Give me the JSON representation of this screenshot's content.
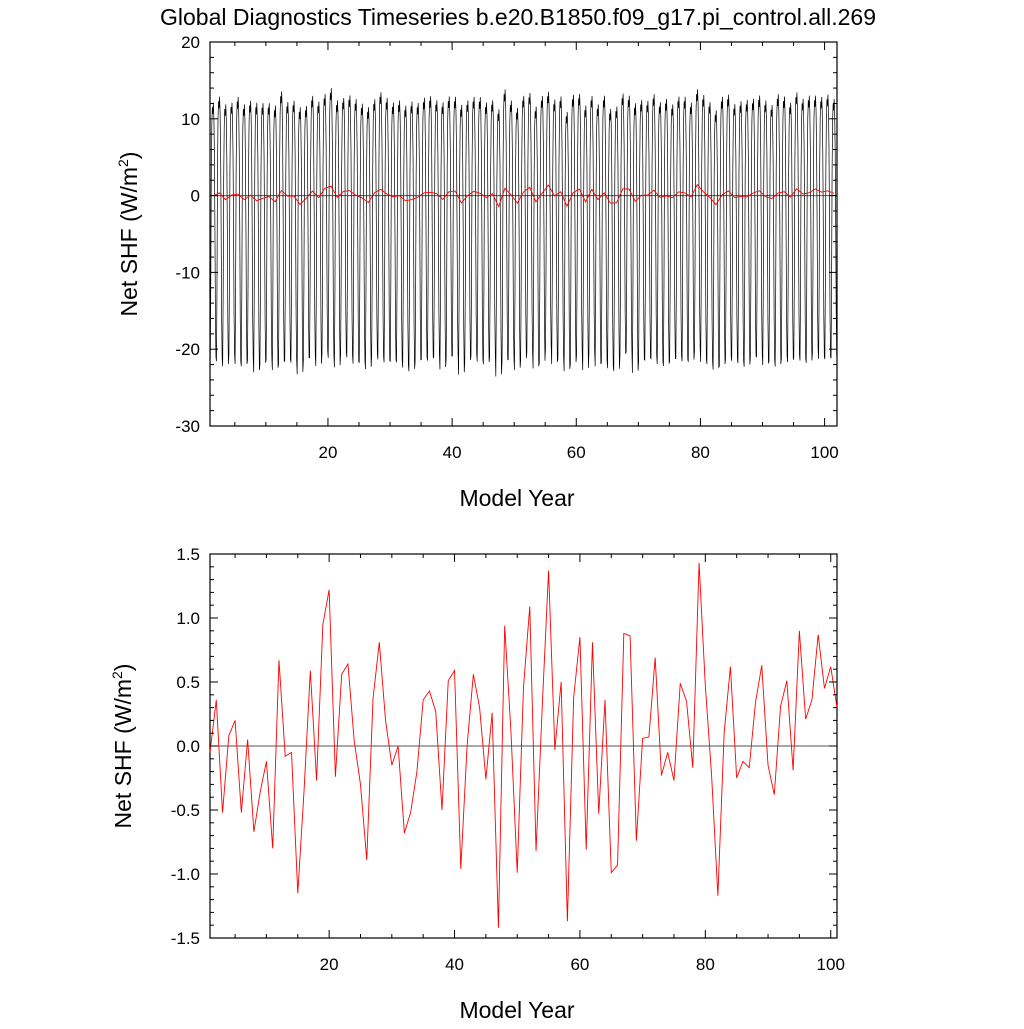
{
  "title": "Global Diagnostics Timeseries b.e20.B1850.f09_g17.pi_control.all.269",
  "chart_data": [
    {
      "type": "line",
      "xlabel": "Model Year",
      "ylabel": "Net SHF (W/m²)",
      "ylabel_main": "Net SHF (W/m",
      "ylabel_sup": "2",
      "ylabel_close": ")",
      "xlim": [
        1,
        102
      ],
      "ylim": [
        -30,
        20
      ],
      "xticks": [
        20,
        40,
        60,
        80,
        100
      ],
      "xtick_labels": [
        "20",
        "40",
        "60",
        "80",
        "100"
      ],
      "yticks": [
        20,
        10,
        0,
        -10,
        -20,
        -30
      ],
      "ytick_labels": [
        "20",
        "10",
        "0",
        "-10",
        "-20",
        "-30"
      ],
      "zero_line": 0,
      "series": [
        {
          "kind": "monthly",
          "color": "#000000",
          "years": 101,
          "month_pattern": [
            -21.7,
            -12.0,
            3.0,
            9.5,
            11.8,
            10.9,
            12.4,
            10.4,
            5.5,
            -4.0,
            -16.0,
            -21.4
          ],
          "year_amplitude_scale": [
            0.98,
            1.01,
            1.0,
            0.97,
            1.02,
            1.0,
            0.99,
            1.03,
            1.0,
            0.98,
            1.01,
            1.04,
            0.99,
            1.0,
            1.02,
            0.97,
            1.0,
            1.01,
            0.99,
            1.03,
            1.02,
            0.98,
            1.0,
            1.01,
            0.99,
            1.0,
            0.98,
            1.02,
            1.01,
            0.99,
            1.0,
            1.0,
            1.03,
            0.99,
            1.0,
            1.01,
            0.98,
            1.02,
            1.0,
            0.99,
            1.03,
            1.0,
            0.99,
            1.01,
            1.0,
            0.98,
            1.02,
            1.04,
            0.99,
            1.0,
            1.01,
            0.99,
            1.0,
            1.02,
            0.98,
            1.01,
            1.0,
            0.99,
            1.03,
            1.0,
            1.01,
            0.98,
            1.0,
            1.02,
            0.99,
            1.01,
            1.0,
            0.98,
            1.03,
            1.0,
            0.99,
            1.01,
            1.0,
            1.02,
            0.98,
            1.0,
            1.01,
            0.99,
            1.0,
            1.02,
            1.0,
            0.99,
            1.03,
            1.01,
            0.98,
            1.0,
            1.02,
            0.99,
            1.0,
            1.01,
            0.98,
            1.04,
            1.0,
            0.99,
            1.01,
            1.0,
            1.02,
            0.98,
            1.0,
            1.01,
            0.99
          ],
          "annual_means": [
            -0.05,
            0.36,
            -0.52,
            0.08,
            0.2,
            -0.52,
            0.05,
            -0.67,
            -0.36,
            -0.12,
            -0.8,
            0.67,
            -0.08,
            -0.05,
            -1.15,
            -0.35,
            0.59,
            -0.27,
            0.95,
            1.22,
            -0.24,
            0.56,
            0.64,
            0.04,
            -0.3,
            -0.89,
            0.37,
            0.81,
            0.2,
            -0.15,
            0.0,
            -0.68,
            -0.52,
            -0.2,
            0.36,
            0.43,
            0.27,
            -0.5,
            0.51,
            0.59,
            -0.96,
            0.0,
            0.56,
            0.3,
            -0.26,
            0.26,
            -1.42,
            0.94,
            0.11,
            -0.99,
            0.46,
            1.09,
            -0.82,
            0.32,
            1.37,
            -0.03,
            0.5,
            -1.37,
            0.38,
            0.85,
            -0.81,
            0.81,
            -0.53,
            0.36,
            -0.99,
            -0.93,
            0.88,
            0.86,
            -0.74,
            0.06,
            0.07,
            0.69,
            -0.23,
            -0.05,
            -0.27,
            0.49,
            0.35,
            -0.17,
            1.43,
            0.47,
            -0.23,
            -1.17,
            0.1,
            0.62,
            -0.25,
            -0.12,
            -0.17,
            0.34,
            0.63,
            -0.15,
            -0.38,
            0.31,
            0.51,
            -0.19,
            0.9,
            0.21,
            0.36,
            0.87,
            0.45,
            0.62,
            0.3
          ]
        },
        {
          "kind": "annual",
          "color": "#ff0000",
          "x_start": 1.5,
          "values_ref": "chart_data.1.series.0.values"
        }
      ]
    },
    {
      "type": "line",
      "xlabel": "Model Year",
      "ylabel": "Net SHF (W/m²)",
      "ylabel_main": "Net SHF (W/m",
      "ylabel_sup": "2",
      "ylabel_close": ")",
      "xlim": [
        1,
        101
      ],
      "ylim": [
        -1.5,
        1.5
      ],
      "xticks": [
        20,
        40,
        60,
        80,
        100
      ],
      "xtick_labels": [
        "20",
        "40",
        "60",
        "80",
        "100"
      ],
      "yticks": [
        1.5,
        1.0,
        0.5,
        0.0,
        -0.5,
        -1.0,
        -1.5
      ],
      "ytick_labels": [
        "1.5",
        "1.0",
        "0.5",
        "0.0",
        "-0.5",
        "-1.0",
        "-1.5"
      ],
      "zero_line": 0,
      "series": [
        {
          "color": "#ff0000",
          "x": [
            1,
            2,
            3,
            4,
            5,
            6,
            7,
            8,
            9,
            10,
            11,
            12,
            13,
            14,
            15,
            16,
            17,
            18,
            19,
            20,
            21,
            22,
            23,
            24,
            25,
            26,
            27,
            28,
            29,
            30,
            31,
            32,
            33,
            34,
            35,
            36,
            37,
            38,
            39,
            40,
            41,
            42,
            43,
            44,
            45,
            46,
            47,
            48,
            49,
            50,
            51,
            52,
            53,
            54,
            55,
            56,
            57,
            58,
            59,
            60,
            61,
            62,
            63,
            64,
            65,
            66,
            67,
            68,
            69,
            70,
            71,
            72,
            73,
            74,
            75,
            76,
            77,
            78,
            79,
            80,
            81,
            82,
            83,
            84,
            85,
            86,
            87,
            88,
            89,
            90,
            91,
            92,
            93,
            94,
            95,
            96,
            97,
            98,
            99,
            100,
            101
          ],
          "values": [
            -0.05,
            0.36,
            -0.52,
            0.08,
            0.2,
            -0.52,
            0.05,
            -0.67,
            -0.36,
            -0.12,
            -0.8,
            0.67,
            -0.08,
            -0.05,
            -1.15,
            -0.35,
            0.59,
            -0.27,
            0.95,
            1.22,
            -0.24,
            0.56,
            0.64,
            0.04,
            -0.3,
            -0.89,
            0.37,
            0.81,
            0.2,
            -0.15,
            0.0,
            -0.68,
            -0.52,
            -0.2,
            0.36,
            0.43,
            0.27,
            -0.5,
            0.51,
            0.59,
            -0.96,
            0.0,
            0.56,
            0.3,
            -0.26,
            0.26,
            -1.42,
            0.94,
            0.11,
            -0.99,
            0.46,
            1.09,
            -0.82,
            0.32,
            1.37,
            -0.03,
            0.5,
            -1.37,
            0.38,
            0.85,
            -0.81,
            0.81,
            -0.53,
            0.36,
            -0.99,
            -0.93,
            0.88,
            0.86,
            -0.74,
            0.06,
            0.07,
            0.69,
            -0.23,
            -0.05,
            -0.27,
            0.49,
            0.35,
            -0.17,
            1.43,
            0.47,
            -0.23,
            -1.17,
            0.1,
            0.62,
            -0.25,
            -0.12,
            -0.17,
            0.34,
            0.63,
            -0.15,
            -0.38,
            0.31,
            0.51,
            -0.19,
            0.9,
            0.21,
            0.36,
            0.87,
            0.45,
            0.62,
            0.3
          ]
        }
      ]
    }
  ]
}
